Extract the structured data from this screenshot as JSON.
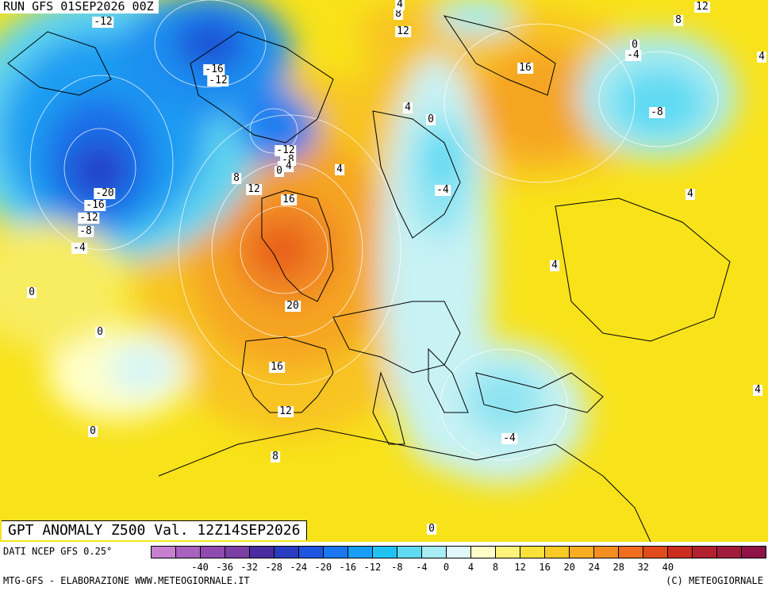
{
  "header": {
    "run_label": "RUN GFS 01SEP2026 00Z",
    "anomaly_label": "GPT ANOMALY Z500 Val. 12Z14SEP2026"
  },
  "footer": {
    "source": "DATI NCEP GFS 0.25°",
    "credit_left": "MTG-GFS - ELABORAZIONE WWW.METEOGIORNALE.IT",
    "credit_right": "(C) METEOGIORNALE"
  },
  "colorbar": {
    "tick_labels": [
      "-40",
      "-36",
      "-32",
      "-28",
      "-24",
      "-20",
      "-16",
      "-12",
      "-8",
      "-4",
      "0",
      "4",
      "8",
      "12",
      "16",
      "20",
      "24",
      "28",
      "32",
      "40"
    ],
    "colors": [
      "#c77fd0",
      "#a861bd",
      "#8f4ab0",
      "#7a3ea4",
      "#4b2ca0",
      "#2a3cc0",
      "#1d55e0",
      "#1a77f0",
      "#189ef5",
      "#21c2f2",
      "#5fdaf2",
      "#a8ecf4",
      "#e0f8f8",
      "#ffffc8",
      "#fff27a",
      "#fbe23a",
      "#f8ca26",
      "#f6ad22",
      "#f38f21",
      "#ee6d1f",
      "#e24b1b",
      "#cb2d20",
      "#b3202e",
      "#a31b3c",
      "#8e1447"
    ]
  },
  "contour_labels": [
    {
      "id": "c1",
      "text": "-12"
    },
    {
      "id": "c2",
      "text": "-16"
    },
    {
      "id": "c3",
      "text": "-12"
    },
    {
      "id": "c4",
      "text": "-12"
    },
    {
      "id": "c5",
      "text": "-8"
    },
    {
      "id": "c6",
      "text": "-4"
    },
    {
      "id": "c7",
      "text": "0"
    },
    {
      "id": "c8",
      "text": "-20"
    },
    {
      "id": "c9",
      "text": "-16"
    },
    {
      "id": "c10",
      "text": "-12"
    },
    {
      "id": "c11",
      "text": "-8"
    },
    {
      "id": "c12",
      "text": "-4"
    },
    {
      "id": "c13",
      "text": "0"
    },
    {
      "id": "c14",
      "text": "8"
    },
    {
      "id": "c15",
      "text": "12"
    },
    {
      "id": "c16",
      "text": "16"
    },
    {
      "id": "c17",
      "text": "4"
    },
    {
      "id": "c18",
      "text": "20"
    },
    {
      "id": "c19",
      "text": "16"
    },
    {
      "id": "c20",
      "text": "12"
    },
    {
      "id": "c21",
      "text": "8"
    },
    {
      "id": "c22",
      "text": "0"
    },
    {
      "id": "c23",
      "text": "0"
    },
    {
      "id": "c24",
      "text": "8"
    },
    {
      "id": "c25",
      "text": "12"
    },
    {
      "id": "c26",
      "text": "4"
    },
    {
      "id": "c27",
      "text": "0"
    },
    {
      "id": "c28",
      "text": "-4"
    },
    {
      "id": "c29",
      "text": "16"
    },
    {
      "id": "c30",
      "text": "8"
    },
    {
      "id": "c31",
      "text": "12"
    },
    {
      "id": "c32",
      "text": "0"
    },
    {
      "id": "c33",
      "text": "-4"
    },
    {
      "id": "c34",
      "text": "-8"
    },
    {
      "id": "c35",
      "text": "4"
    },
    {
      "id": "c36",
      "text": "4"
    },
    {
      "id": "c37",
      "text": "-4"
    },
    {
      "id": "c38",
      "text": "0"
    },
    {
      "id": "c39",
      "text": "4"
    },
    {
      "id": "c40",
      "text": "4"
    },
    {
      "id": "c41",
      "text": "4"
    }
  ]
}
